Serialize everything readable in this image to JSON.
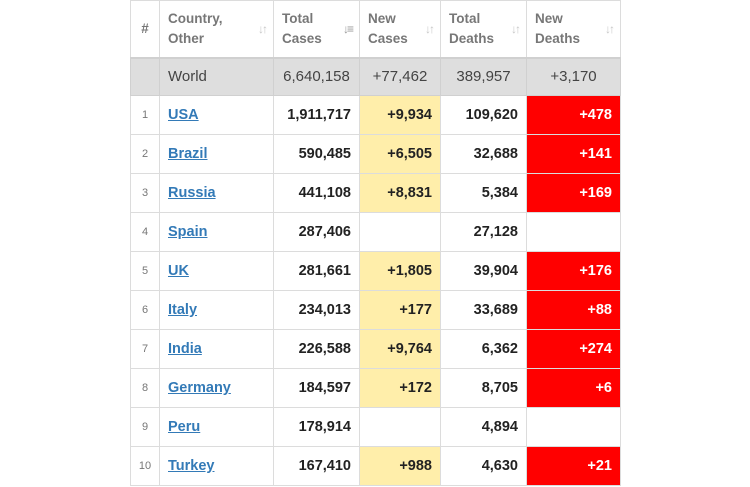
{
  "headers": {
    "rank": "#",
    "country": [
      "Country,",
      "Other"
    ],
    "total_cases": [
      "Total",
      "Cases"
    ],
    "new_cases": [
      "New",
      "Cases"
    ],
    "total_deaths": [
      "Total",
      "Deaths"
    ],
    "new_deaths": [
      "New",
      "Deaths"
    ]
  },
  "icons": {
    "sort": "sort-arrows-icon",
    "sort_active": "sort-desc-icon"
  },
  "colors": {
    "new_cases_bg": "#ffeeaa",
    "new_deaths_bg": "#ff0000",
    "world_bg": "#dedede",
    "link": "#337ab7"
  },
  "world": {
    "name": "World",
    "total_cases": "6,640,158",
    "new_cases": "+77,462",
    "total_deaths": "389,957",
    "new_deaths": "+3,170"
  },
  "rows": [
    {
      "rank": "1",
      "country": "USA",
      "total_cases": "1,911,717",
      "new_cases": "+9,934",
      "total_deaths": "109,620",
      "new_deaths": "+478"
    },
    {
      "rank": "2",
      "country": "Brazil",
      "total_cases": "590,485",
      "new_cases": "+6,505",
      "total_deaths": "32,688",
      "new_deaths": "+141"
    },
    {
      "rank": "3",
      "country": "Russia",
      "total_cases": "441,108",
      "new_cases": "+8,831",
      "total_deaths": "5,384",
      "new_deaths": "+169"
    },
    {
      "rank": "4",
      "country": "Spain",
      "total_cases": "287,406",
      "new_cases": "",
      "total_deaths": "27,128",
      "new_deaths": ""
    },
    {
      "rank": "5",
      "country": "UK",
      "total_cases": "281,661",
      "new_cases": "+1,805",
      "total_deaths": "39,904",
      "new_deaths": "+176"
    },
    {
      "rank": "6",
      "country": "Italy",
      "total_cases": "234,013",
      "new_cases": "+177",
      "total_deaths": "33,689",
      "new_deaths": "+88"
    },
    {
      "rank": "7",
      "country": "India",
      "total_cases": "226,588",
      "new_cases": "+9,764",
      "total_deaths": "6,362",
      "new_deaths": "+274"
    },
    {
      "rank": "8",
      "country": "Germany",
      "total_cases": "184,597",
      "new_cases": "+172",
      "total_deaths": "8,705",
      "new_deaths": "+6"
    },
    {
      "rank": "9",
      "country": "Peru",
      "total_cases": "178,914",
      "new_cases": "",
      "total_deaths": "4,894",
      "new_deaths": ""
    },
    {
      "rank": "10",
      "country": "Turkey",
      "total_cases": "167,410",
      "new_cases": "+988",
      "total_deaths": "4,630",
      "new_deaths": "+21"
    }
  ]
}
